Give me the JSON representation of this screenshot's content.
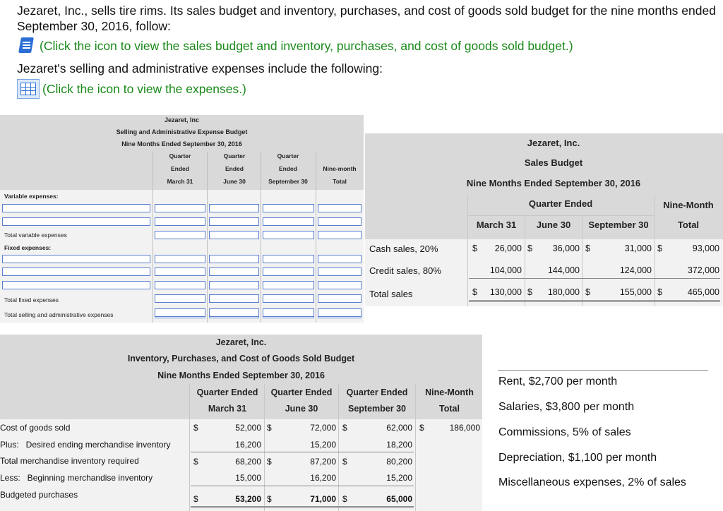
{
  "intro": {
    "line1": "Jezaret, Inc., sells tire rims. Its sales budget and inventory, purchases, and cost of goods sold budget for the nine months ended September 30, 2016, follow:",
    "link1": "(Click the icon to view the sales budget and inventory, purchases, and cost of goods sold budget.)",
    "line2": "Jezaret's selling and administrative expenses include the following:",
    "link2": "(Click the icon to view the expenses.)"
  },
  "icons": {
    "book": "book-icon",
    "grid": "spreadsheet-icon"
  },
  "colors": {
    "link": "#1a8a1a",
    "header_bg": "#d9d9d9",
    "input_border": "#5a7fd0"
  },
  "sa_budget": {
    "company": "Jezaret, Inc",
    "title": "Selling and Administrative Expense Budget",
    "period": "Nine Months Ended September 30, 2016",
    "columns": [
      {
        "l1": "Quarter",
        "l2": "Ended",
        "l3": "March 31"
      },
      {
        "l1": "Quarter",
        "l2": "Ended",
        "l3": "June 30"
      },
      {
        "l1": "Quarter",
        "l2": "Ended",
        "l3": "September 30"
      },
      {
        "l1": "",
        "l2": "Nine-month",
        "l3": "Total"
      }
    ],
    "variable_label": "Variable expenses:",
    "total_variable": "Total variable expenses",
    "fixed_label": "Fixed expenses:",
    "total_fixed": "Total fixed expenses",
    "total_sa": "Total selling and administrative expenses"
  },
  "sales_budget": {
    "company": "Jezaret, Inc.",
    "title": "Sales Budget",
    "period": "Nine Months Ended September 30, 2016",
    "quarter_ended": "Quarter Ended",
    "nine_month": "Nine-Month",
    "cols": [
      "March 31",
      "June 30",
      "September 30",
      "Total"
    ],
    "rows": [
      {
        "label": "Cash sales, 20%",
        "values": [
          "26,000",
          "36,000",
          "31,000",
          "93,000"
        ],
        "dollar": true
      },
      {
        "label": "Credit sales, 80%",
        "values": [
          "104,000",
          "144,000",
          "124,000",
          "372,000"
        ],
        "dollar": false
      },
      {
        "label": "Total sales",
        "values": [
          "130,000",
          "180,000",
          "155,000",
          "465,000"
        ],
        "dollar": true
      }
    ],
    "currency": "$"
  },
  "inv_budget": {
    "company": "Jezaret, Inc.",
    "title": "Inventory, Purchases, and Cost of Goods Sold Budget",
    "period": "Nine Months Ended September 30, 2016",
    "cols": [
      {
        "l1": "Quarter Ended",
        "l2": "March 31"
      },
      {
        "l1": "Quarter Ended",
        "l2": "June 30"
      },
      {
        "l1": "Quarter Ended",
        "l2": "September 30"
      },
      {
        "l1": "Nine-Month",
        "l2": "Total"
      }
    ],
    "rows": [
      {
        "label": "Cost of goods sold",
        "values": [
          "52,000",
          "72,000",
          "62,000",
          "186,000"
        ],
        "dollar": true
      },
      {
        "label": "Plus:   Desired ending merchandise inventory",
        "values": [
          "16,200",
          "15,200",
          "18,200",
          ""
        ],
        "dollar": false
      },
      {
        "label": "Total merchandise inventory required",
        "values": [
          "68,200",
          "87,200",
          "80,200",
          ""
        ],
        "dollar": true
      },
      {
        "label": "Less:   Beginning merchandise inventory",
        "values": [
          "15,000",
          "16,200",
          "15,200",
          ""
        ],
        "dollar": false
      },
      {
        "label": "Budgeted purchases",
        "values": [
          "53,200",
          "71,000",
          "65,000",
          ""
        ],
        "dollar": true
      }
    ],
    "currency": "$"
  },
  "expenses": [
    "Rent, $2,700 per month",
    "Salaries, $3,800 per month",
    "Commissions, 5% of sales",
    "Depreciation, $1,100 per month",
    "Miscellaneous expenses, 2% of sales"
  ]
}
